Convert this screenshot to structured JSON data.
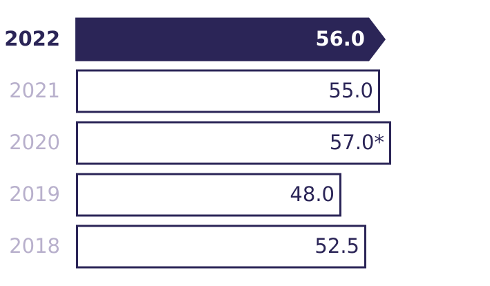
{
  "chart_data": {
    "type": "bar",
    "orientation": "horizontal",
    "categories": [
      "2022",
      "2021",
      "2020",
      "2019",
      "2018"
    ],
    "values": [
      56.0,
      55.0,
      57.0,
      48.0,
      52.5
    ],
    "value_labels": [
      "56.0",
      "55.0",
      "57.0*",
      "48.0",
      "52.5"
    ],
    "colors": [
      "#2b2557",
      "#ffffff",
      "#ffffff",
      "#ffffff",
      "#ffffff"
    ],
    "color": "#2b2557"
  }
}
